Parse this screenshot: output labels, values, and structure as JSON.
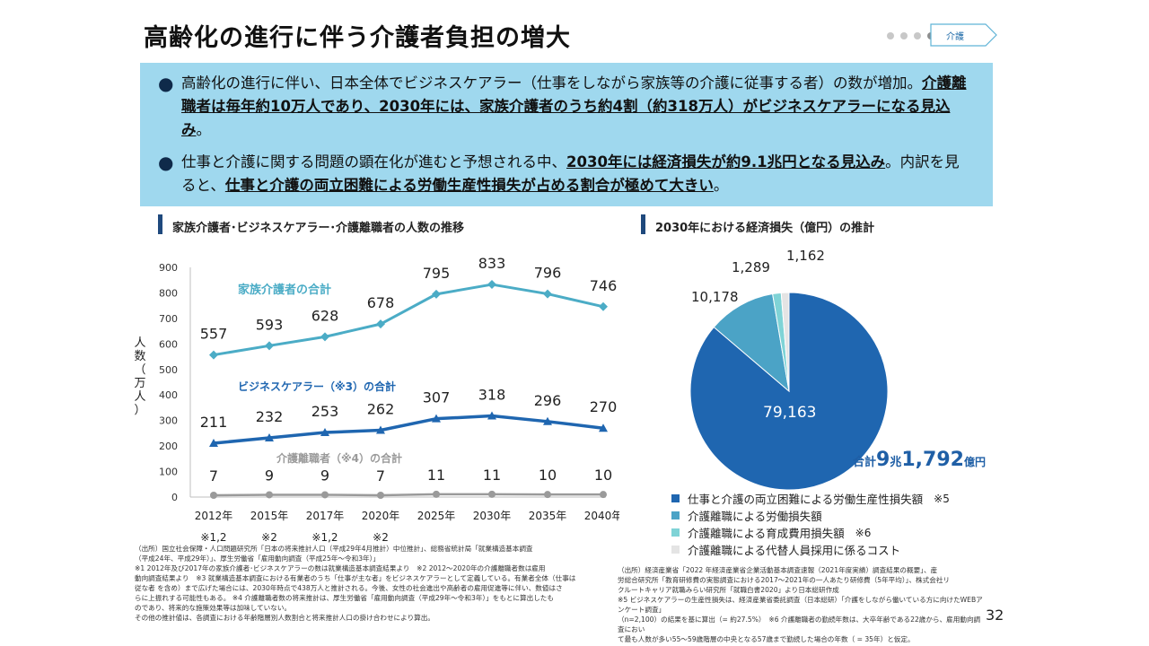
{
  "header": {
    "title": "高齢化の進行に伴う介護者負担の増大",
    "tag": "介護"
  },
  "summary": {
    "bullet1": {
      "plain1": "高齢化の進行に伴い、日本全体でビジネスケアラー（仕事をしながら家族等の介護に従事する者）の数が増加。",
      "bold1": "介護離職者は毎年約10万人であり、2030年には、家族介護者のうち約4割（約318万人）がビジネスケアラーになる見込み",
      "plain2": "。"
    },
    "bullet2": {
      "plain1": "仕事と介護に関する問題の顕在化が進むと予想される中、",
      "bold1": "2030年には経済損失が約9.1兆円となる見込み",
      "plain2": "。内訳を見ると、",
      "bold2": "仕事と介護の両立困難による労働生産性損失が占める割合が極めて大きい",
      "plain3": "。"
    }
  },
  "left_panel": {
    "title": "家族介護者･ビジネスケアラー･介護離職者の人数の推移",
    "ylabel": "人数（万人）",
    "notes": [
      "※1,2",
      "※2",
      "※1,2",
      "※2"
    ],
    "footnote_lines": [
      "（出所）国立社会保障・人口問題研究所「日本の将来推計人口（平成29年4月推計）中位推計」、総務省統計局「就業構造基本調査",
      "（平成24年、平成29年）」、厚生労働省「雇用動向調査（平成25年～令和3年）」",
      "※1 2012年及び2017年の家族介護者･ビジネスケアラーの数は就業構造基本調査結果より　※2 2012～2020年の介護離職者数は雇用",
      "動向調査結果より　※3 就業構造基本調査における有業者のうち「仕事が主な者」をビジネスケアラーとして定義している。有業者全体（仕事は",
      "従な者 を含め）まで広げた場合には、2030年時点で438万人と推計される。今後、女性の社会進出や高齢者の雇用促進等に伴い、数値はさ",
      "らに上振れする可能性もある。 ※4 介護離職者数の将来推計は、厚生労働省「雇用動向調査（平成29年～令和3年）」をもとに算出したも",
      "のであり、将来的な施策効果等は加味していない。",
      "その他の推計値は、各調査における年齢階層別人数割合と将来推計人口の掛け合わせにより算出。"
    ]
  },
  "right_panel": {
    "title": "2030年における経済損失（億円）の推計",
    "total": {
      "prefix": "合計",
      "big1": "9",
      "mid": "兆",
      "big2": "1,792",
      "suffix": "億円"
    },
    "legend_notes": [
      "※5",
      "",
      "※6",
      ""
    ],
    "footnote_lines": [
      "（出所）経済産業省「2022 年経済産業省企業活動基本調査速報（2021年度実績）調査結果の概要」、産",
      "労総合研究所「教育研修費の実態調査における2017～2021年の一人あたり研修費（5年平均）」、株式会社リ",
      "クルートキャリア就職みらい研究所「就職白書2020」より日本総研作成",
      "※5 ビジネスケアラーの生産性損失は、経済産業省委託調査（日本総研）「介護をしながら働いている方に向けたWEBアンケート調査」",
      "（n=2,100）の結果を基に算出（= 約27.5%）　※6 介護離職者の勤続年数は、大卒年齢である22歳から、雇用動向調査におい",
      "て最も人数が多い55～59歳階層の中央となる57歳まで勤続した場合の年数（ = 35年）と仮定。"
    ]
  },
  "page_number": "32",
  "colors": {
    "caregivers": "#4bacc6",
    "business": "#1f66b0",
    "leavers": "#9a9a9a",
    "pie": [
      "#1f66b0",
      "#4ba3c6",
      "#7fd3d6",
      "#e4e4e4"
    ]
  },
  "chart_data": [
    {
      "type": "line",
      "title": "家族介護者･ビジネスケアラー･介護離職者の人数の推移",
      "ylabel": "人数（万人）",
      "categories": [
        "2012年",
        "2015年",
        "2017年",
        "2020年",
        "2025年",
        "2030年",
        "2035年",
        "2040年"
      ],
      "ylim": [
        0,
        900
      ],
      "yticks": [
        0,
        100,
        200,
        300,
        400,
        500,
        600,
        700,
        800,
        900
      ],
      "series": [
        {
          "name": "家族介護者の合計",
          "values": [
            557,
            593,
            628,
            678,
            795,
            833,
            796,
            746
          ]
        },
        {
          "name": "ビジネスケアラー（※3）の合計",
          "values": [
            211,
            232,
            253,
            262,
            307,
            318,
            296,
            270
          ]
        },
        {
          "name": "介護離職者（※4）の合計",
          "values": [
            7,
            9,
            9,
            7,
            11,
            11,
            10,
            10
          ]
        }
      ],
      "data_labels": [
        [
          "557",
          "593",
          "628",
          "678",
          "795",
          "833",
          "796",
          "746"
        ],
        [
          "211",
          "232",
          "253",
          "262",
          "307",
          "318",
          "296",
          "270"
        ],
        [
          "7",
          "9",
          "9",
          "7",
          "11",
          "11",
          "10",
          "10"
        ]
      ],
      "grid": false
    },
    {
      "type": "pie",
      "title": "2030年における経済損失（億円）の推計",
      "labels": [
        "仕事と介護の両立困難による労働生産性損失額",
        "介護離職による労働損失額",
        "介護離職による育成費用損失額",
        "介護離職による代替人員採用に係るコスト"
      ],
      "values": [
        79163,
        10178,
        1289,
        1162
      ],
      "value_labels": [
        "79,163",
        "10,178",
        "1,289",
        "1,162"
      ],
      "legend": "bottom"
    }
  ]
}
